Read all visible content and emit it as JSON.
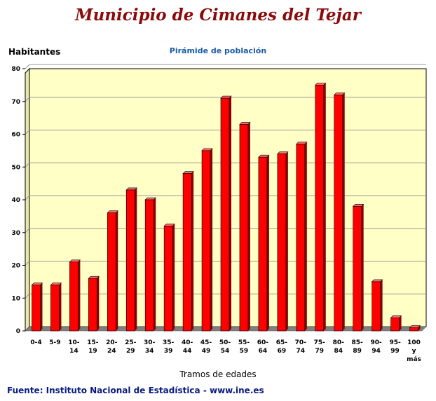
{
  "header": {
    "title": "Municipio de Cimanes del Tejar"
  },
  "source": "Fuente: Instituto Nacional de Estadística - www.ine.es",
  "chart_data": {
    "type": "bar",
    "title": "Pirámide de población",
    "ylabel": "Habitantes",
    "xlabel": "Tramos de edades",
    "ylim": [
      0,
      80
    ],
    "yticks": [
      0,
      10,
      20,
      30,
      40,
      50,
      60,
      70,
      80
    ],
    "grid": true,
    "legend": "none",
    "categories": [
      "0-4",
      "5-9",
      "10-14",
      "15-19",
      "20-24",
      "25-29",
      "30-34",
      "35-39",
      "40-44",
      "45-49",
      "50-54",
      "55-59",
      "60-64",
      "65-69",
      "70-74",
      "75-79",
      "80-84",
      "85-89",
      "90-94",
      "95-99",
      "100 y más"
    ],
    "category_lines": [
      [
        "0-4"
      ],
      [
        "5-9"
      ],
      [
        "10-",
        "14"
      ],
      [
        "15-",
        "19"
      ],
      [
        "20-",
        "24"
      ],
      [
        "25-",
        "29"
      ],
      [
        "30-",
        "34"
      ],
      [
        "35-",
        "39"
      ],
      [
        "40-",
        "44"
      ],
      [
        "45-",
        "49"
      ],
      [
        "50-",
        "54"
      ],
      [
        "55-",
        "59"
      ],
      [
        "60-",
        "64"
      ],
      [
        "65-",
        "69"
      ],
      [
        "70-",
        "74"
      ],
      [
        "75-",
        "79"
      ],
      [
        "80-",
        "84"
      ],
      [
        "85-",
        "89"
      ],
      [
        "90-",
        "94"
      ],
      [
        "95-",
        "99"
      ],
      [
        "100",
        "y",
        "más"
      ]
    ],
    "values": [
      14,
      14,
      21,
      16,
      36,
      43,
      40,
      32,
      48,
      55,
      71,
      63,
      53,
      54,
      57,
      75,
      72,
      38,
      15,
      4,
      1
    ],
    "colors": {
      "bar": "#ff0000",
      "bar_side": "#8b0000",
      "bar_top": "#ff6a6a",
      "plot_bg": "#ffffc6",
      "floor": "#808080"
    }
  }
}
